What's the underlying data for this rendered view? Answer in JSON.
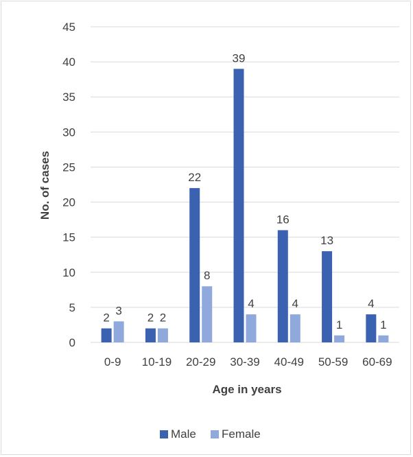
{
  "chart_data": {
    "type": "bar",
    "title": "",
    "xlabel": "Age in years",
    "ylabel": "No. of cases",
    "categories": [
      "0-9",
      "10-19",
      "20-29",
      "30-39",
      "40-49",
      "50-59",
      "60-69"
    ],
    "series": [
      {
        "name": "Male",
        "values": [
          2,
          2,
          22,
          39,
          16,
          13,
          4
        ],
        "color": "#3b62b0"
      },
      {
        "name": "Female",
        "values": [
          3,
          2,
          8,
          4,
          4,
          1,
          1
        ],
        "color": "#8fa9dc"
      }
    ],
    "ylim": [
      0,
      45
    ],
    "yticks": [
      0,
      5,
      10,
      15,
      20,
      25,
      30,
      35,
      40,
      45
    ],
    "grid": true,
    "data_labels": true,
    "legend_position": "bottom",
    "gridline_color": "#d9d9d9"
  }
}
